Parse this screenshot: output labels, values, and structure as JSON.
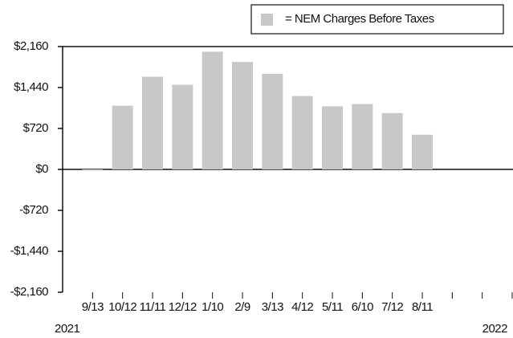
{
  "chart_data": {
    "type": "bar",
    "categories": [
      "9/13",
      "10/12",
      "11/11",
      "12/12",
      "1/10",
      "2/9",
      "3/13",
      "4/12",
      "5/11",
      "6/10",
      "7/12",
      "8/11",
      null,
      null
    ],
    "series": [
      {
        "name": "= NEM Charges Before Taxes",
        "color": "#c8c8c8",
        "values": [
          -15,
          1120,
          1630,
          1490,
          2070,
          1890,
          1680,
          1290,
          1110,
          1150,
          990,
          610,
          null,
          null
        ]
      }
    ],
    "ylim": [
      -2160,
      2160
    ],
    "yticks": [
      {
        "value": -2160,
        "label": "-$2,160"
      },
      {
        "value": -1440,
        "label": "-$1,440"
      },
      {
        "value": -720,
        "label": "-$720"
      },
      {
        "value": 0,
        "label": "$0"
      },
      {
        "value": 720,
        "label": "$720"
      },
      {
        "value": 1440,
        "label": "$1,440"
      },
      {
        "value": 2160,
        "label": "$2,160"
      }
    ],
    "annotations": [
      "2021",
      "2022"
    ],
    "legend": "top-right"
  }
}
